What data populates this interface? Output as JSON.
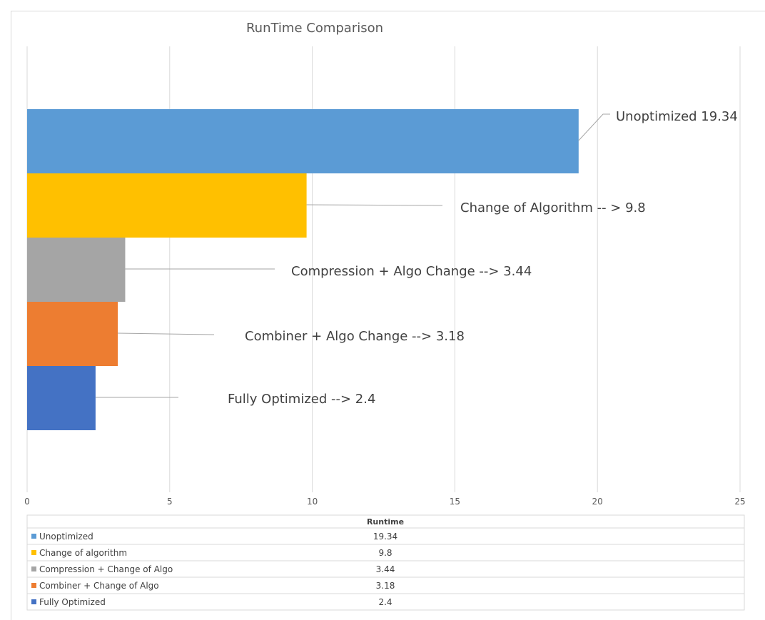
{
  "chart_data": {
    "type": "bar",
    "orientation": "horizontal",
    "title": "RunTime Comparison",
    "categories": [
      "Unoptimized",
      "Change of algorithm",
      "Compression + Change of Algo",
      "Combiner + Change of Algo",
      "Fully Optimized"
    ],
    "series": [
      {
        "name": "Runtime",
        "values": [
          19.34,
          9.8,
          3.44,
          3.18,
          2.4
        ]
      }
    ],
    "colors": [
      "#5b9bd5",
      "#ffc000",
      "#a5a5a5",
      "#ed7d31",
      "#4472c4"
    ],
    "data_labels": [
      "Unoptimized 19.34",
      "Change of Algorithm -- > 9.8",
      "Compression + Algo Change --> 3.44",
      "Combiner + Algo Change --> 3.18",
      "Fully Optimized --> 2.4"
    ],
    "xlim": [
      0,
      25
    ],
    "xticks": [
      "0",
      "5",
      "10",
      "15",
      "20",
      "25"
    ],
    "grid": true,
    "legend": "data table below",
    "table_header": "Runtime",
    "table_values": [
      "19.34",
      "9.8",
      "3.44",
      "3.18",
      "2.4"
    ]
  }
}
